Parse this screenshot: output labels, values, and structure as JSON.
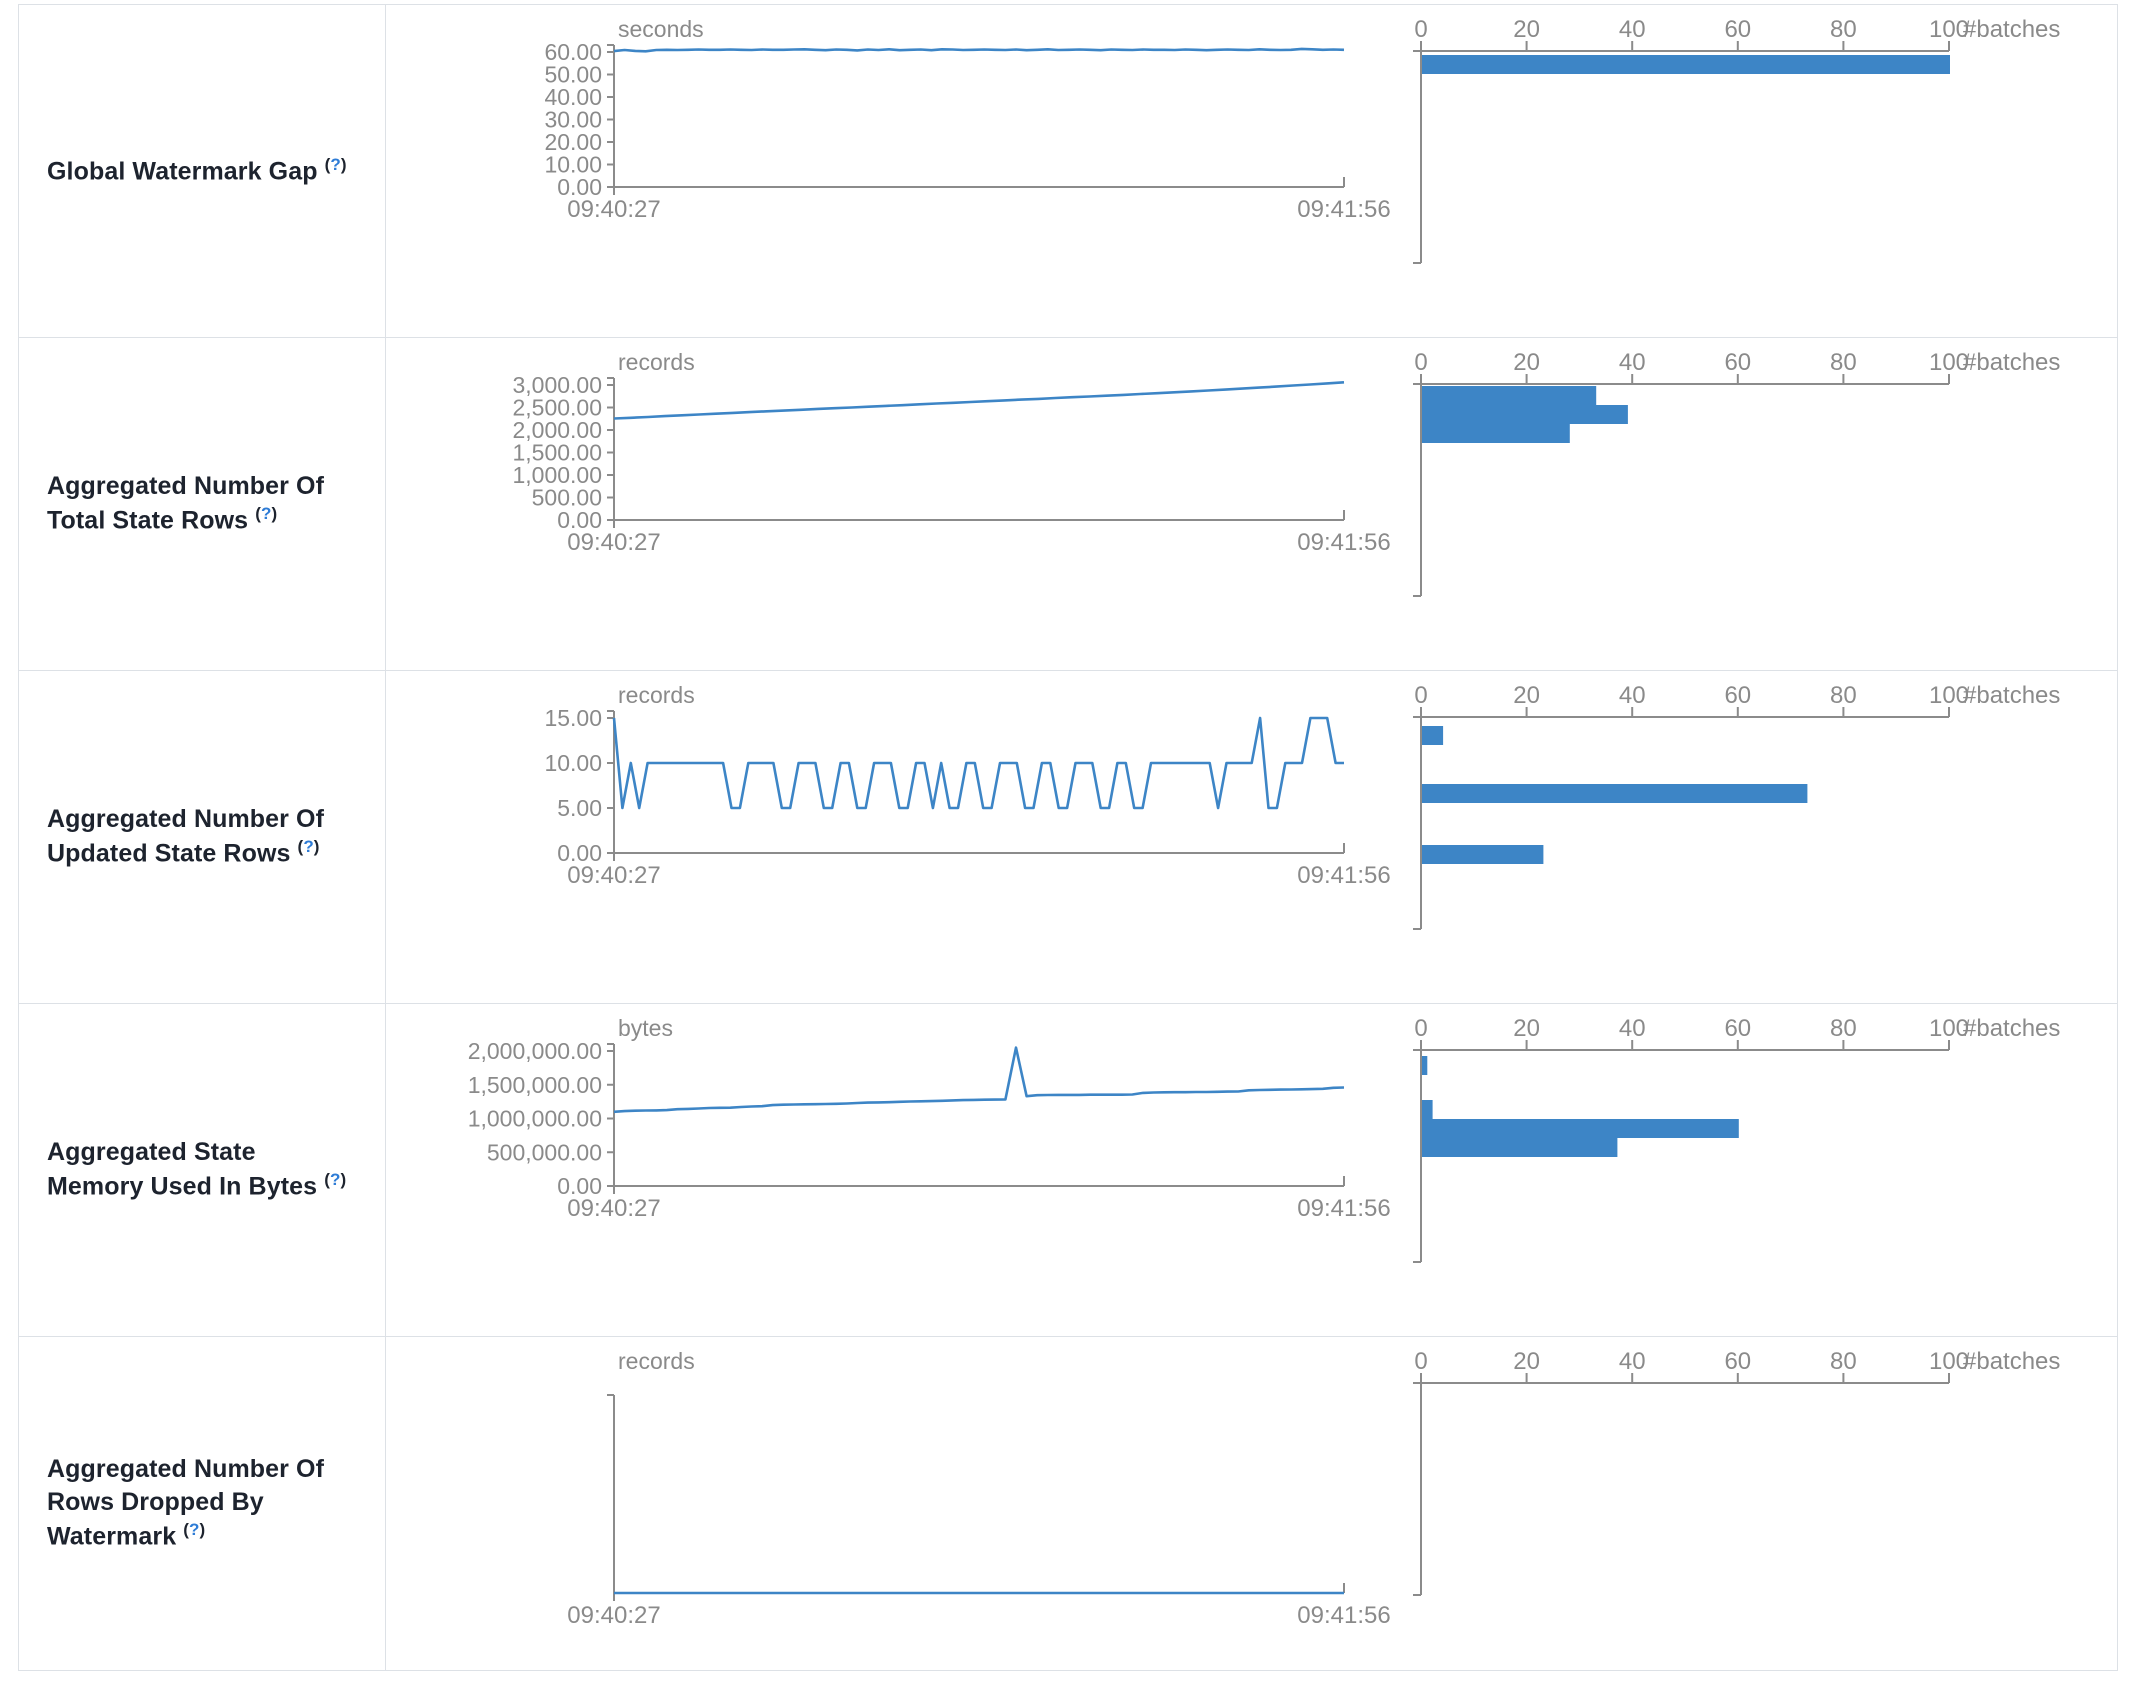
{
  "x_axis": {
    "start_label": "09:40:27",
    "end_label": "09:41:56"
  },
  "histogram_axis": {
    "tick_values": [
      0,
      20,
      40,
      60,
      80,
      100
    ],
    "tick_labels": [
      "0",
      "20",
      "40",
      "60",
      "80",
      "100"
    ],
    "axis_label": "#batches",
    "max": 100
  },
  "colors": {
    "accent": "#3d85c6",
    "axis_gray": "#8b8b8b",
    "text_gray": "#8a8a8a",
    "title_text": "#1d232e",
    "help_link": "#2e7cd6",
    "border": "#dde1e6"
  },
  "chart_data": [
    {
      "type": "line+bar",
      "title": "Global Watermark Gap",
      "help": {
        "open": "(",
        "mark": "?",
        "close": ")"
      },
      "unit": "seconds",
      "x_tick_labels": [
        "09:40:27",
        "09:41:56"
      ],
      "y_axis": {
        "top_value": 60,
        "ticks": [
          {
            "v": 60,
            "label": "60.00"
          },
          {
            "v": 50,
            "label": "50.00"
          },
          {
            "v": 40,
            "label": "40.00"
          },
          {
            "v": 30,
            "label": "30.00"
          },
          {
            "v": 20,
            "label": "20.00"
          },
          {
            "v": 10,
            "label": "10.00"
          },
          {
            "v": 0,
            "label": "0.00"
          }
        ]
      },
      "series": [
        60.4,
        60.9,
        60.5,
        60.3,
        60.9,
        61.0,
        60.9,
        61.0,
        61.1,
        61.0,
        61.0,
        61.1,
        61.0,
        60.9,
        61.1,
        61.0,
        61.0,
        61.1,
        61.2,
        61.0,
        60.8,
        61.1,
        61.0,
        60.7,
        61.1,
        60.9,
        61.2,
        60.8,
        61.0,
        61.1,
        60.8,
        61.2,
        61.1,
        60.9,
        61.0,
        61.1,
        61.0,
        60.9,
        61.1,
        60.8,
        61.0,
        61.2,
        60.9,
        61.0,
        61.1,
        61.0,
        60.8,
        61.1,
        61.0,
        60.9,
        61.1,
        61.0,
        61.0,
        60.9,
        61.1,
        61.0,
        60.8,
        61.0,
        61.1,
        61.0,
        60.9,
        61.2,
        61.0,
        60.9,
        61.0,
        61.4,
        61.2,
        61.0,
        61.1,
        61.0
      ],
      "histogram_bars": [
        {
          "value": 100,
          "top_offset": 4
        }
      ]
    },
    {
      "type": "line+bar",
      "title": "Aggregated Number Of Total State Rows",
      "help": {
        "open": "(",
        "mark": "?",
        "close": ")"
      },
      "unit": "records",
      "x_tick_labels": [
        "09:40:27",
        "09:41:56"
      ],
      "y_axis": {
        "top_value": 3000,
        "ticks": [
          {
            "v": 3000,
            "label": "3,000.00"
          },
          {
            "v": 2500,
            "label": "2,500.00"
          },
          {
            "v": 2000,
            "label": "2,000.00"
          },
          {
            "v": 1500,
            "label": "1,500.00"
          },
          {
            "v": 1000,
            "label": "1,000.00"
          },
          {
            "v": 500,
            "label": "500.00"
          },
          {
            "v": 0,
            "label": "0.00"
          }
        ]
      },
      "series": [
        2255,
        2272,
        2290,
        2308,
        2326,
        2345,
        2362,
        2380,
        2398,
        2415,
        2432,
        2450,
        2468,
        2485,
        2500,
        2518,
        2535,
        2552,
        2570,
        2588,
        2605,
        2622,
        2640,
        2658,
        2675,
        2692,
        2710,
        2728,
        2745,
        2762,
        2780,
        2800,
        2818,
        2838,
        2858,
        2878,
        2898,
        2920,
        2942,
        2965,
        2988,
        3010,
        3035,
        3060
      ],
      "histogram_bars": [
        {
          "value": 33,
          "top_offset": 2
        },
        {
          "value": 39,
          "top_offset": 21
        },
        {
          "value": 28,
          "top_offset": 40
        }
      ]
    },
    {
      "type": "line+bar",
      "title": "Aggregated Number Of Updated State Rows",
      "help": {
        "open": "(",
        "mark": "?",
        "close": ")"
      },
      "unit": "records",
      "x_tick_labels": [
        "09:40:27",
        "09:41:56"
      ],
      "y_axis": {
        "top_value": 15,
        "ticks": [
          {
            "v": 15,
            "label": "15.00"
          },
          {
            "v": 10,
            "label": "10.00"
          },
          {
            "v": 5,
            "label": "5.00"
          },
          {
            "v": 0,
            "label": "0.00"
          }
        ]
      },
      "series": [
        15,
        5,
        10,
        5,
        10,
        10,
        10,
        10,
        10,
        10,
        10,
        10,
        10,
        10,
        5,
        5,
        10,
        10,
        10,
        10,
        5,
        5,
        10,
        10,
        10,
        5,
        5,
        10,
        10,
        5,
        5,
        10,
        10,
        10,
        5,
        5,
        10,
        10,
        5,
        10,
        5,
        5,
        10,
        10,
        5,
        5,
        10,
        10,
        10,
        5,
        5,
        10,
        10,
        5,
        5,
        10,
        10,
        10,
        5,
        5,
        10,
        10,
        5,
        5,
        10,
        10,
        10,
        10,
        10,
        10,
        10,
        10,
        5,
        10,
        10,
        10,
        10,
        15,
        5,
        5,
        10,
        10,
        10,
        15,
        15,
        15,
        10,
        10
      ],
      "histogram_bars": [
        {
          "value": 4,
          "top_offset": 9
        },
        {
          "value": 73,
          "top_offset": 67
        },
        {
          "value": 23,
          "top_offset": 128
        }
      ]
    },
    {
      "type": "line+bar",
      "title": "Aggregated State Memory Used In Bytes",
      "help": {
        "open": "(",
        "mark": "?",
        "close": ")"
      },
      "unit": "bytes",
      "x_tick_labels": [
        "09:40:27",
        "09:41:56"
      ],
      "y_axis": {
        "top_value": 2000000,
        "ticks": [
          {
            "v": 2000000,
            "label": "2,000,000.00"
          },
          {
            "v": 1500000,
            "label": "1,500,000.00"
          },
          {
            "v": 1000000,
            "label": "1,000,000.00"
          },
          {
            "v": 500000,
            "label": "500,000.00"
          },
          {
            "v": 0,
            "label": "0.00"
          }
        ]
      },
      "series": [
        1100000,
        1110000,
        1115000,
        1118000,
        1120000,
        1125000,
        1138000,
        1142000,
        1148000,
        1155000,
        1158000,
        1160000,
        1170000,
        1178000,
        1182000,
        1198000,
        1205000,
        1208000,
        1210000,
        1212000,
        1215000,
        1218000,
        1222000,
        1230000,
        1235000,
        1238000,
        1242000,
        1248000,
        1252000,
        1255000,
        1258000,
        1262000,
        1268000,
        1272000,
        1275000,
        1278000,
        1280000,
        1282000,
        2050000,
        1330000,
        1345000,
        1348000,
        1350000,
        1350000,
        1350000,
        1352000,
        1352000,
        1352000,
        1353000,
        1355000,
        1380000,
        1385000,
        1388000,
        1390000,
        1390000,
        1392000,
        1392000,
        1395000,
        1398000,
        1400000,
        1418000,
        1422000,
        1425000,
        1428000,
        1430000,
        1432000,
        1435000,
        1440000,
        1455000,
        1460000
      ],
      "histogram_bars": [
        {
          "value": 1,
          "top_offset": 6
        },
        {
          "value": 2,
          "top_offset": 50
        },
        {
          "value": 60,
          "top_offset": 69
        },
        {
          "value": 37,
          "top_offset": 88
        }
      ]
    },
    {
      "type": "line+bar",
      "title": "Aggregated Number Of Rows Dropped By Watermark",
      "help": {
        "open": "(",
        "mark": "?",
        "close": ")"
      },
      "unit": "records",
      "x_tick_labels": [
        "09:40:27",
        "09:41:56"
      ],
      "y_axis": {
        "top_value": 1,
        "ticks": []
      },
      "series": [
        0,
        0
      ],
      "histogram_bars": []
    }
  ]
}
